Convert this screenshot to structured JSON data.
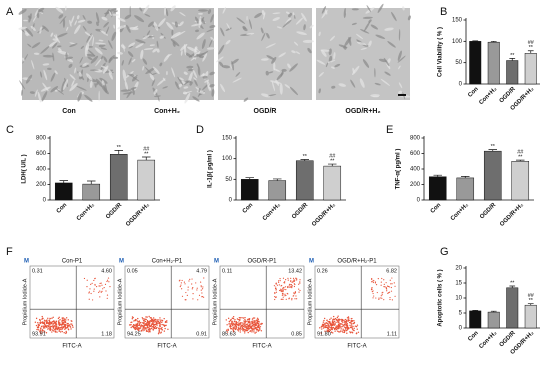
{
  "micrographs": {
    "panel": "A",
    "labels": [
      "Con",
      "Con+H₂",
      "OGD/R",
      "OGD/R+H₂"
    ]
  },
  "chart_data": [
    {
      "type": "bar",
      "panel": "B",
      "y_label": "Cell Viability ( % )",
      "categories": [
        "Con",
        "Con+H₂",
        "OGD/R",
        "OGD/R+H₂"
      ],
      "values": [
        100,
        98,
        55,
        72
      ],
      "errors": [
        1,
        2,
        5,
        6
      ],
      "colors": [
        "#111111",
        "#999999",
        "#6e6e6e",
        "#cfcfcf"
      ],
      "ylim": [
        0,
        150
      ],
      "yticks": [
        0,
        50,
        100,
        150
      ],
      "annotations": [
        {
          "index": 2,
          "text": "**"
        },
        {
          "index": 3,
          "text": "**"
        },
        {
          "index": 3,
          "text": "##"
        }
      ]
    },
    {
      "type": "bar",
      "panel": "C",
      "y_label": "LDH( U/L )",
      "categories": [
        "Con",
        "Con+H₂",
        "OGD/R",
        "OGD/R+H₂"
      ],
      "values": [
        220,
        205,
        590,
        515
      ],
      "errors": [
        30,
        40,
        50,
        40
      ],
      "colors": [
        "#111111",
        "#999999",
        "#6e6e6e",
        "#cfcfcf"
      ],
      "ylim": [
        0,
        800
      ],
      "yticks": [
        0,
        200,
        400,
        600,
        800
      ],
      "annotations": [
        {
          "index": 2,
          "text": "**"
        },
        {
          "index": 3,
          "text": "**"
        },
        {
          "index": 3,
          "text": "##"
        }
      ]
    },
    {
      "type": "bar",
      "panel": "D",
      "y_label": "IL-1β( pg/ml )",
      "categories": [
        "Con",
        "Con+H₂",
        "OGD/R",
        "OGD/R+H₂"
      ],
      "values": [
        50,
        47,
        95,
        82
      ],
      "errors": [
        4,
        4,
        3,
        5
      ],
      "colors": [
        "#111111",
        "#999999",
        "#6e6e6e",
        "#cfcfcf"
      ],
      "ylim": [
        0,
        150
      ],
      "yticks": [
        0,
        50,
        100,
        150
      ],
      "annotations": [
        {
          "index": 2,
          "text": "**"
        },
        {
          "index": 3,
          "text": "**"
        },
        {
          "index": 3,
          "text": "##"
        }
      ]
    },
    {
      "type": "bar",
      "panel": "E",
      "y_label": "TNF-α( pg/ml )",
      "categories": [
        "Con",
        "Con+H₂",
        "OGD/R",
        "OGD/R+H₂"
      ],
      "values": [
        300,
        285,
        630,
        500
      ],
      "errors": [
        20,
        20,
        20,
        15
      ],
      "colors": [
        "#111111",
        "#999999",
        "#6e6e6e",
        "#cfcfcf"
      ],
      "ylim": [
        0,
        800
      ],
      "yticks": [
        0,
        200,
        400,
        600,
        800
      ],
      "annotations": [
        {
          "index": 2,
          "text": "**"
        },
        {
          "index": 3,
          "text": "**"
        },
        {
          "index": 3,
          "text": "##"
        }
      ]
    },
    {
      "type": "bar",
      "panel": "G",
      "y_label": "Apoptotic cells ( % )",
      "categories": [
        "Con",
        "Con+H₂",
        "OGD/R",
        "OGD/R+H₂"
      ],
      "values": [
        5.7,
        5.3,
        13.4,
        7.6
      ],
      "errors": [
        0.2,
        0.3,
        0.6,
        0.5
      ],
      "colors": [
        "#111111",
        "#999999",
        "#6e6e6e",
        "#cfcfcf"
      ],
      "ylim": [
        0,
        20
      ],
      "yticks": [
        0,
        5,
        10,
        15,
        20
      ],
      "annotations": [
        {
          "index": 2,
          "text": "**"
        },
        {
          "index": 3,
          "text": "**"
        },
        {
          "index": 3,
          "text": "##"
        }
      ]
    }
  ],
  "flow": {
    "panel": "F",
    "x_label": "FITC-A",
    "y_label": "Propidium Iodide-A",
    "marker": "M",
    "plots": [
      {
        "title": "Con-P1",
        "quadrants": [
          "0.31",
          "4.60",
          "93.91",
          "1.18"
        ]
      },
      {
        "title": "Con+H₂-P1",
        "quadrants": [
          "0.05",
          "4.79",
          "94.25",
          "0.91"
        ]
      },
      {
        "title": "OGD/R-P1",
        "quadrants": [
          "0.11",
          "13.42",
          "85.63",
          "0.85"
        ]
      },
      {
        "title": "OGD/R+H₂-P1",
        "quadrants": [
          "0.26",
          "6.82",
          "91.80",
          "1.11"
        ]
      }
    ]
  }
}
